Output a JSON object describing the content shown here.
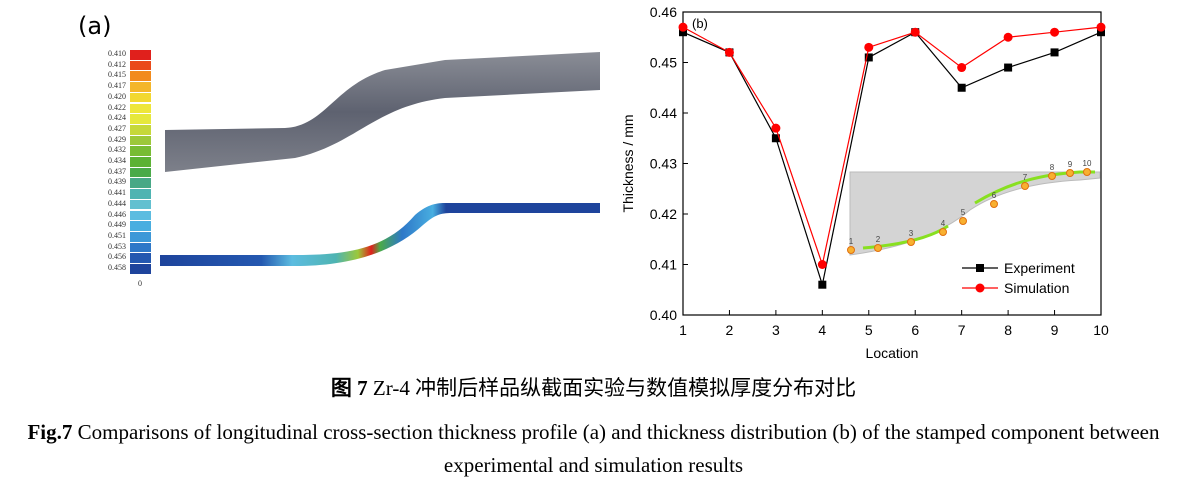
{
  "panel_a": {
    "label": "(a)",
    "colorbar": {
      "labels": [
        "0.410",
        "0.412",
        "0.415",
        "0.417",
        "0.420",
        "0.422",
        "0.424",
        "0.427",
        "0.429",
        "0.432",
        "0.434",
        "0.437",
        "0.439",
        "0.441",
        "0.444",
        "0.446",
        "0.449",
        "0.451",
        "0.453",
        "0.456",
        "0.458"
      ],
      "colors": [
        "#e0201c",
        "#ea4a1a",
        "#f28a1c",
        "#f4b62a",
        "#f2d830",
        "#eee63a",
        "#e6e83c",
        "#c6d83a",
        "#9cc83a",
        "#78bc34",
        "#5cb234",
        "#4aaa48",
        "#48a886",
        "#4eb4b2",
        "#62c0d0",
        "#5cbce0",
        "#48aee0",
        "#3c98d8",
        "#2e78c8",
        "#2458b0",
        "#1e449c"
      ],
      "bottom_label": "0"
    }
  },
  "chart_data": {
    "type": "line",
    "panel_label": "(b)",
    "xlabel": "Location",
    "ylabel": "Thickness / mm",
    "xlim": [
      1,
      10
    ],
    "ylim": [
      0.4,
      0.46
    ],
    "x_ticks": [
      "1",
      "2",
      "3",
      "4",
      "5",
      "6",
      "7",
      "8",
      "9",
      "10"
    ],
    "y_ticks": [
      "0.40",
      "0.41",
      "0.42",
      "0.43",
      "0.44",
      "0.45",
      "0.46"
    ],
    "x": [
      1,
      2,
      3,
      4,
      5,
      6,
      7,
      8,
      9,
      10
    ],
    "series": [
      {
        "name": "Experiment",
        "color": "#000000",
        "marker": "square",
        "values": [
          0.456,
          0.452,
          0.435,
          0.406,
          0.451,
          0.456,
          0.445,
          0.449,
          0.452,
          0.456
        ]
      },
      {
        "name": "Simulation",
        "color": "#ff0000",
        "marker": "circle",
        "values": [
          0.457,
          0.452,
          0.437,
          0.41,
          0.453,
          0.456,
          0.449,
          0.455,
          0.456,
          0.457
        ]
      }
    ],
    "legend_placement": "bottom-right",
    "inset_point_labels": [
      "1",
      "2",
      "3",
      "4",
      "5",
      "6",
      "7",
      "8",
      "9",
      "10"
    ]
  },
  "caption": {
    "cn_prefix": "图 7",
    "cn_text": " Zr-4 冲制后样品纵截面实验与数值模拟厚度分布对比",
    "en_prefix": "Fig.7",
    "en_text": " Comparisons of longitudinal cross-section thickness profile (a) and thickness distribution (b) of the stamped component between experimental and simulation results"
  }
}
